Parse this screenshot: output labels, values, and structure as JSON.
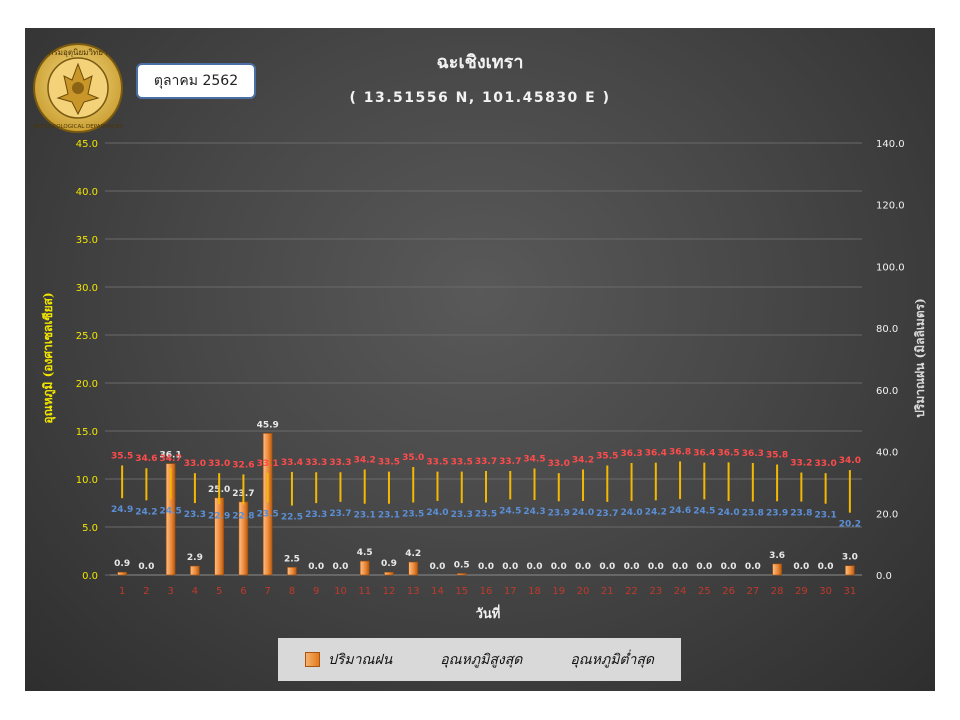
{
  "month_label": "ตุลาคม 2562",
  "chart_data": {
    "type": "bar+range",
    "title": "ฉะเชิงเทรา",
    "subtitle": "( 13.51556 N, 101.45830 E )",
    "xlabel": "วันที่",
    "ylabel_left": "อุณหภูมิ (องศาเซลเซียส)",
    "ylabel_right": "ปริมาณฝน (มิลลิเมตร)",
    "ylim_left": [
      0,
      45
    ],
    "ylim_right": [
      0,
      140
    ],
    "yticks_left": [
      "0.0",
      "5.0",
      "10.0",
      "15.0",
      "20.0",
      "25.0",
      "30.0",
      "35.0",
      "40.0",
      "45.0"
    ],
    "yticks_right": [
      "0.0",
      "20.0",
      "40.0",
      "60.0",
      "80.0",
      "100.0",
      "120.0",
      "140.0"
    ],
    "categories": [
      "1",
      "2",
      "3",
      "4",
      "5",
      "6",
      "7",
      "8",
      "9",
      "10",
      "11",
      "12",
      "13",
      "14",
      "15",
      "16",
      "17",
      "18",
      "19",
      "20",
      "21",
      "22",
      "23",
      "24",
      "25",
      "26",
      "27",
      "28",
      "29",
      "30",
      "31"
    ],
    "series": [
      {
        "name": "ปริมาณฝน",
        "axis": "right",
        "color": "#ed7d31",
        "values": [
          0.9,
          0.0,
          36.1,
          2.9,
          25.0,
          23.7,
          45.9,
          2.5,
          0.0,
          0.0,
          4.5,
          0.9,
          4.2,
          0.0,
          0.5,
          0.0,
          0.0,
          0.0,
          0.0,
          0.0,
          0.0,
          0.0,
          0.0,
          0.0,
          0.0,
          0.0,
          0.0,
          3.6,
          0.0,
          0.0,
          3.0
        ]
      },
      {
        "name": "อุณหภูมิสูงสุด",
        "axis": "right",
        "color": "#ff4b4b",
        "values": [
          35.5,
          34.6,
          34.7,
          33.0,
          33.0,
          32.6,
          33.1,
          33.4,
          33.3,
          33.3,
          34.2,
          33.5,
          35.0,
          33.5,
          33.5,
          33.7,
          33.7,
          34.5,
          33.0,
          34.2,
          35.5,
          36.3,
          36.4,
          36.8,
          36.4,
          36.5,
          36.3,
          35.8,
          33.2,
          33.0,
          34.0
        ]
      },
      {
        "name": "อุณหภูมิต่ำสุด",
        "axis": "right",
        "color": "#5b8fd6",
        "values": [
          24.9,
          24.2,
          24.5,
          23.3,
          22.9,
          22.8,
          23.5,
          22.5,
          23.3,
          23.7,
          23.1,
          23.1,
          23.5,
          24.0,
          23.3,
          23.5,
          24.5,
          24.3,
          23.9,
          24.0,
          23.7,
          24.0,
          24.2,
          24.6,
          24.5,
          24.0,
          23.8,
          23.9,
          23.8,
          23.1,
          20.2
        ]
      }
    ],
    "legend_position": "bottom",
    "grid": true
  }
}
